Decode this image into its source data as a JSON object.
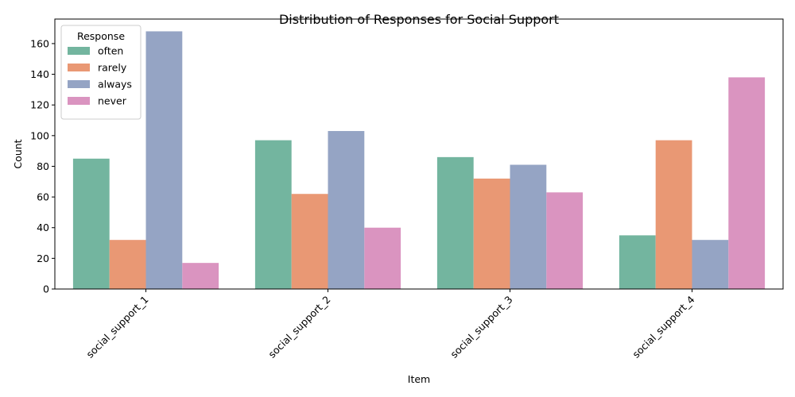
{
  "chart_data": {
    "type": "bar",
    "title": "Distribution of Responses for Social Support",
    "xlabel": "Item",
    "ylabel": "Count",
    "categories": [
      "social_support_1",
      "social_support_2",
      "social_support_3",
      "social_support_4"
    ],
    "series": [
      {
        "name": "often",
        "color": "#73b59f",
        "values": [
          85,
          97,
          86,
          35
        ]
      },
      {
        "name": "rarely",
        "color": "#e99874",
        "values": [
          32,
          62,
          72,
          97
        ]
      },
      {
        "name": "always",
        "color": "#95a4c4",
        "values": [
          168,
          103,
          81,
          32
        ]
      },
      {
        "name": "never",
        "color": "#da94c0",
        "values": [
          17,
          40,
          63,
          138
        ]
      }
    ],
    "ylim": [
      0,
      176
    ],
    "yticks": [
      0,
      20,
      40,
      60,
      80,
      100,
      120,
      140,
      160
    ],
    "grid": false,
    "legend": {
      "title": "Response",
      "position": "top-left"
    }
  }
}
